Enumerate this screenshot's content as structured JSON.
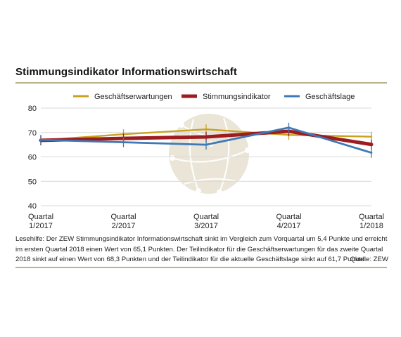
{
  "title": "Stimmungsindikator Informationswirtschaft",
  "caption": "Lesehilfe: Der ZEW Stimmungsindikator Informationswirtschaft sinkt im Vergleich zum Vorquartal um 5,4 Punkte und erreicht im ersten Quartal 2018 einen Wert von 65,1 Punkten. Der Teilindikator für die Geschäftserwartungen für das zweite Quartal 2018 sinkt auf einen Wert von 68,3 Punkten und der Teilindikator für die aktuelle Geschäftslage sinkt auf 61,7 Punkte.",
  "source": "Quelle: ZEW",
  "colors": {
    "accent_rule": "#b9b28a",
    "grid": "#d9d9d9",
    "globe": "#e6e1d0"
  },
  "chart_data": {
    "type": "line",
    "categories": [
      [
        "Quartal",
        "1/2017"
      ],
      [
        "Quartal",
        "2/2017"
      ],
      [
        "Quartal",
        "3/2017"
      ],
      [
        "Quartal",
        "4/2017"
      ],
      [
        "Quartal",
        "1/2018"
      ]
    ],
    "ylim": [
      40,
      80
    ],
    "yticks": [
      40,
      50,
      60,
      70,
      80
    ],
    "grid": true,
    "legend_position": "top",
    "series": [
      {
        "name": "Geschäftserwartungen",
        "color": "#c8a21e",
        "values": [
          66.8,
          69.3,
          71.3,
          69.0,
          68.3
        ]
      },
      {
        "name": "Stimmungsindikator",
        "color": "#9e1c20",
        "values": [
          66.8,
          67.6,
          68.2,
          70.5,
          65.1
        ]
      },
      {
        "name": "Geschäftslage",
        "color": "#3f79b5",
        "values": [
          67.0,
          66.0,
          65.0,
          72.0,
          61.7
        ]
      }
    ]
  }
}
